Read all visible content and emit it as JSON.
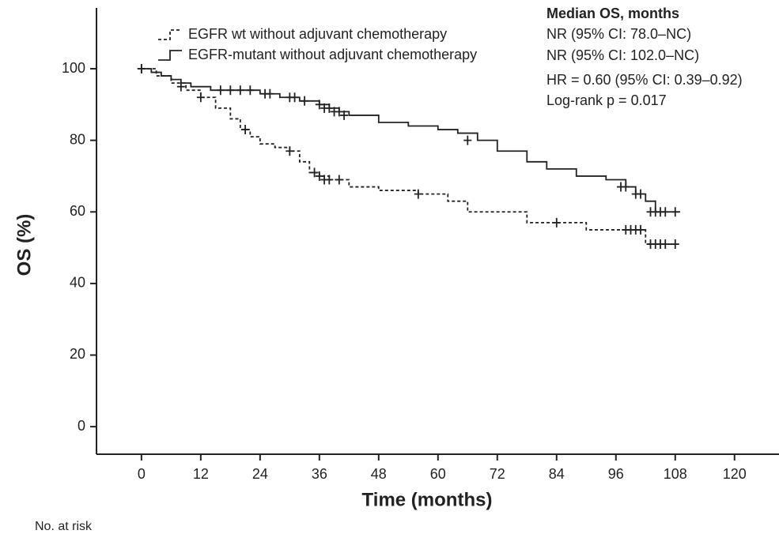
{
  "chart_data": {
    "type": "km",
    "xlabel": "Time (months)",
    "ylabel": "OS (%)",
    "xlim": [
      -9.1,
      129
    ],
    "xticks": [
      0,
      12,
      24,
      36,
      48,
      60,
      72,
      84,
      96,
      108,
      120
    ],
    "ylim": [
      -7.7,
      117
    ],
    "yticks": [
      0,
      20,
      40,
      60,
      80,
      100
    ],
    "annotations": [
      "Median OS, months",
      "NR (95% CI: 78.0–NC)",
      "NR (95% CI: 102.0–NC)",
      "HR = 0.60 (95% CI: 0.39–0.92)",
      "Log-rank p = 0.017"
    ],
    "footer": "No. at risk",
    "series": [
      {
        "name": "EGFR wt without adjuvant chemotherapy",
        "color": "#222222",
        "dash": true,
        "x": [
          0,
          3,
          6,
          9,
          12,
          15,
          18,
          20,
          22,
          24,
          27,
          30,
          32,
          34,
          36,
          38,
          42,
          48,
          56,
          62,
          66,
          78,
          90,
          102,
          108
        ],
        "y": [
          100,
          98,
          96,
          94,
          92,
          89,
          86,
          83,
          81,
          79,
          78,
          77,
          74,
          71,
          70,
          69,
          67,
          66,
          65,
          63,
          60,
          57,
          55,
          51,
          51
        ],
        "censor_x": [
          0,
          8,
          12,
          21,
          30,
          35,
          36,
          37,
          38,
          40,
          56,
          84,
          98,
          99,
          100,
          101,
          103,
          104,
          105,
          106,
          108
        ],
        "censor_y": [
          100,
          95,
          92,
          83,
          77,
          71,
          70,
          69,
          69,
          69,
          65,
          57,
          55,
          55,
          55,
          55,
          51,
          51,
          51,
          51,
          51
        ]
      },
      {
        "name": "EGFR-mutant without adjuvant chemotherapy",
        "color": "#222222",
        "dash": false,
        "x": [
          0,
          2,
          4,
          6,
          8,
          10,
          14,
          24,
          28,
          32,
          36,
          38,
          40,
          42,
          48,
          54,
          60,
          64,
          68,
          72,
          78,
          82,
          88,
          94,
          98,
          100,
          102,
          104,
          109
        ],
        "y": [
          100,
          99,
          98,
          97,
          96,
          95,
          94,
          93,
          92,
          91,
          90,
          89,
          88,
          87,
          85,
          84,
          83,
          82,
          80,
          77,
          74,
          72,
          70,
          69,
          67,
          65,
          63,
          60,
          60
        ],
        "censor_x": [
          0,
          16,
          18,
          20,
          22,
          25,
          26,
          30,
          31,
          33,
          36,
          37,
          38,
          39,
          40,
          41,
          66,
          97,
          98,
          100,
          101,
          103,
          104,
          105,
          106,
          108
        ],
        "censor_y": [
          100,
          94,
          94,
          94,
          94,
          93,
          93,
          92,
          92,
          91,
          90,
          89,
          89,
          88,
          88,
          87,
          80,
          67,
          67,
          65,
          65,
          60,
          60,
          60,
          60,
          60
        ]
      }
    ]
  }
}
